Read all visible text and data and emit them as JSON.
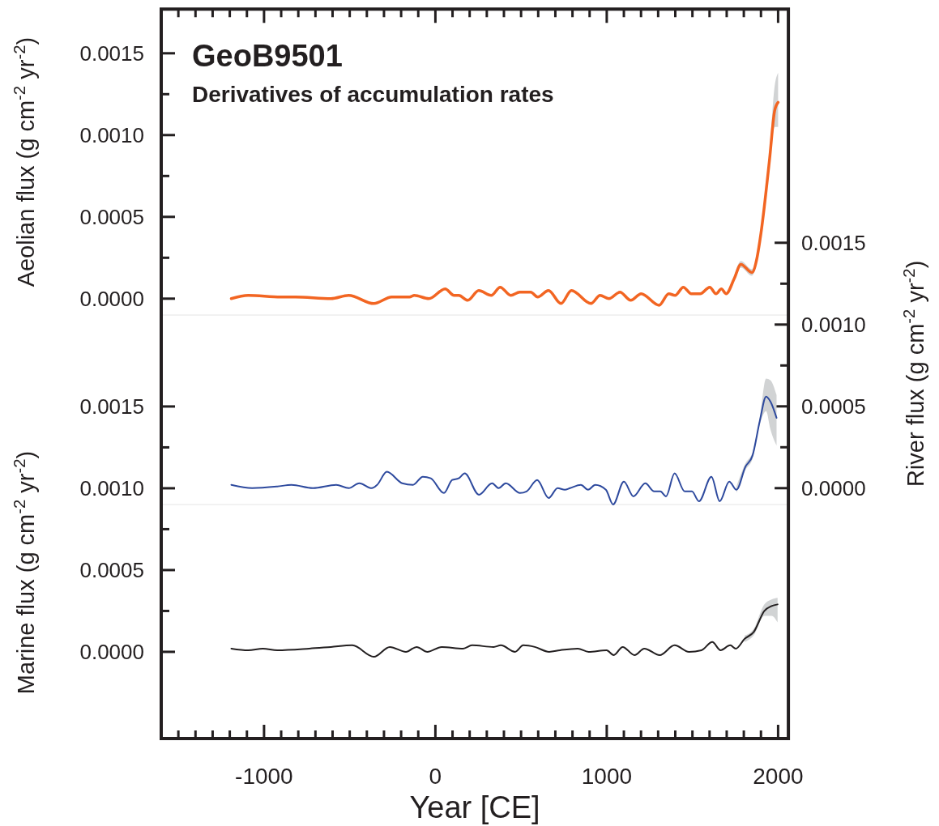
{
  "chart_data": [
    {
      "type": "line",
      "title": "GeoB9501",
      "subtitle": "Derivatives of accumulation rates",
      "ylabel": "Aeolian flux (g cm$^{-2}$ yr$^{-2}$)",
      "xlim": [
        -1600,
        2060
      ],
      "ylim": [
        -0.0001,
        0.00177
      ],
      "yticks": [
        {
          "value": 0,
          "label": "0.0000"
        },
        {
          "value": 0.00025,
          "label": null
        },
        {
          "value": 0.0005,
          "label": "0.0005"
        },
        {
          "value": 0.00075,
          "label": null
        },
        {
          "value": 0.001,
          "label": "0.0010"
        },
        {
          "value": 0.00125,
          "label": null
        },
        {
          "value": 0.0015,
          "label": "0.0015"
        }
      ],
      "tick_labels": "y",
      "series": [
        {
          "color": "#f26522",
          "x": [
            -1191,
            -1092,
            -903,
            -818,
            -610,
            -506,
            -359,
            -255,
            -151,
            -123,
            -38,
            57,
            109,
            137,
            189,
            253,
            326,
            378,
            440,
            492,
            556,
            597,
            660,
            733,
            794,
            908,
            961,
            1013,
            1077,
            1140,
            1201,
            1305,
            1362,
            1399,
            1447,
            1493,
            1545,
            1601,
            1638,
            1669,
            1697,
            1743,
            1783,
            1847,
            1877,
            1900,
            1950,
            1980,
            2000
          ],
          "values": [
            0.0,
            2e-05,
            1e-05,
            1e-05,
            0.0,
            2e-05,
            -3e-05,
            1e-05,
            1e-05,
            2e-05,
            0.0,
            6e-05,
            2e-05,
            2e-05,
            -1e-05,
            5e-05,
            2e-05,
            7e-05,
            2e-05,
            4e-05,
            4e-05,
            1e-05,
            5e-05,
            -3e-05,
            5e-05,
            -3e-05,
            2e-05,
            0.0,
            4e-05,
            -1e-05,
            3e-05,
            -4e-05,
            3e-05,
            2e-05,
            7e-05,
            3e-05,
            3e-05,
            7e-05,
            3e-05,
            6e-05,
            3e-05,
            0.00012,
            0.00021,
            0.00016,
            0.00025,
            0.0004,
            0.00085,
            0.00115,
            0.0012
          ],
          "lower": [
            null,
            null,
            null,
            null,
            null,
            null,
            null,
            null,
            null,
            null,
            null,
            null,
            null,
            null,
            null,
            null,
            null,
            null,
            null,
            null,
            null,
            null,
            null,
            null,
            null,
            null,
            null,
            null,
            null,
            null,
            null,
            null,
            null,
            null,
            null,
            null,
            null,
            null,
            null,
            null,
            null,
            0.00011,
            0.00019,
            0.00014,
            0.00023,
            0.00037,
            0.0008,
            0.00105,
            0.00105
          ],
          "upper": [
            null,
            null,
            null,
            null,
            null,
            null,
            null,
            null,
            null,
            null,
            null,
            null,
            null,
            null,
            null,
            null,
            null,
            null,
            null,
            null,
            null,
            null,
            null,
            null,
            null,
            null,
            null,
            null,
            null,
            null,
            null,
            null,
            null,
            null,
            null,
            null,
            null,
            null,
            null,
            null,
            null,
            0.00013,
            0.00023,
            0.00018,
            0.00027,
            0.00043,
            0.0009,
            0.0013,
            0.00138
          ]
        }
      ]
    },
    {
      "type": "line",
      "y2label": "River flux (g cm$^{-2}$ yr$^{-2}$)",
      "xlim": [
        -1600,
        2060
      ],
      "y2lim": [
        -0.0001,
        0.0015
      ],
      "y2ticks": [
        {
          "value": 0,
          "label": "0.0000"
        },
        {
          "value": 0.00025,
          "label": null
        },
        {
          "value": 0.0005,
          "label": "0.0005"
        },
        {
          "value": 0.00075,
          "label": null
        },
        {
          "value": 0.001,
          "label": "0.0010"
        },
        {
          "value": 0.00125,
          "label": null
        },
        {
          "value": 0.0015,
          "label": "0.0015"
        }
      ],
      "tick_labels": "y",
      "series": [
        {
          "color": "#2e4a9e",
          "axis": "y2",
          "x": [
            -1191,
            -1069,
            -923,
            -840,
            -715,
            -579,
            -506,
            -444,
            -371,
            -340,
            -283,
            -194,
            -131,
            -73,
            -27,
            50,
            98,
            136,
            171,
            254,
            331,
            369,
            411,
            494,
            532,
            594,
            661,
            713,
            755,
            786,
            849,
            891,
            933,
            995,
            1037,
            1100,
            1156,
            1225,
            1277,
            1313,
            1346,
            1396,
            1455,
            1497,
            1538,
            1611,
            1659,
            1715,
            1757,
            1809,
            1851,
            1893,
            1930,
            1955,
            1991
          ],
          "values": [
            2e-05,
            0.0,
            1e-05,
            2e-05,
            0.0,
            2e-05,
            0.0,
            3e-05,
            0.0,
            2e-05,
            0.0001,
            3e-05,
            2e-05,
            7e-05,
            6e-05,
            -3e-05,
            5e-05,
            6e-05,
            9e-05,
            -4e-05,
            3e-05,
            0.0,
            3e-05,
            -3e-05,
            -2e-05,
            5e-05,
            -6e-05,
            0.0,
            -1e-05,
            0.0,
            2e-05,
            -1e-05,
            2e-05,
            -1e-05,
            -0.0001,
            4e-05,
            -5e-05,
            3e-05,
            -2e-05,
            -2e-05,
            -5e-05,
            9e-05,
            -2e-05,
            -2e-05,
            -8e-05,
            7e-05,
            -8e-05,
            4e-05,
            -1e-05,
            0.00013,
            0.0002,
            0.00041,
            0.00056,
            0.00053,
            0.00043
          ],
          "lower": [
            null,
            null,
            null,
            null,
            null,
            null,
            null,
            null,
            null,
            null,
            null,
            null,
            null,
            null,
            null,
            null,
            null,
            null,
            null,
            null,
            null,
            null,
            null,
            null,
            null,
            null,
            null,
            null,
            null,
            null,
            null,
            null,
            null,
            null,
            null,
            null,
            null,
            null,
            null,
            null,
            null,
            null,
            null,
            null,
            null,
            null,
            null,
            null,
            -3e-05,
            0.00011,
            0.00018,
            0.00039,
            0.00047,
            0.00036,
            0.00026
          ],
          "upper": [
            null,
            null,
            null,
            null,
            null,
            null,
            null,
            null,
            null,
            null,
            null,
            null,
            null,
            null,
            null,
            null,
            null,
            null,
            null,
            null,
            null,
            null,
            null,
            null,
            null,
            null,
            null,
            null,
            null,
            null,
            null,
            null,
            null,
            null,
            null,
            null,
            null,
            null,
            null,
            null,
            null,
            null,
            null,
            null,
            null,
            null,
            null,
            null,
            1e-05,
            0.00015,
            0.00022,
            0.00043,
            0.00067,
            0.00066,
            0.00057
          ]
        }
      ]
    },
    {
      "type": "line",
      "xlabel": "Year [CE]",
      "ylabel": "Marine flux (g cm$^{-2}$ yr$^{-2}$)",
      "xlim": [
        -1600,
        2060
      ],
      "ylim": [
        -0.00053,
        0.0015
      ],
      "xticks": [
        {
          "value": -1500,
          "label": null
        },
        {
          "value": -1400,
          "label": null
        },
        {
          "value": -1300,
          "label": null
        },
        {
          "value": -1200,
          "label": null
        },
        {
          "value": -1100,
          "label": null
        },
        -1000,
        {
          "value": -900,
          "label": null
        },
        {
          "value": -800,
          "label": null
        },
        {
          "value": -700,
          "label": null
        },
        {
          "value": -600,
          "label": null
        },
        {
          "value": -500,
          "label": null
        },
        {
          "value": -400,
          "label": null
        },
        {
          "value": -300,
          "label": null
        },
        {
          "value": -200,
          "label": null
        },
        {
          "value": -100,
          "label": null
        },
        0,
        {
          "value": 100,
          "label": null
        },
        {
          "value": 200,
          "label": null
        },
        {
          "value": 300,
          "label": null
        },
        {
          "value": 400,
          "label": null
        },
        {
          "value": 500,
          "label": null
        },
        {
          "value": 600,
          "label": null
        },
        {
          "value": 700,
          "label": null
        },
        {
          "value": 800,
          "label": null
        },
        {
          "value": 900,
          "label": null
        },
        1000,
        {
          "value": 1100,
          "label": null
        },
        {
          "value": 1200,
          "label": null
        },
        {
          "value": 1300,
          "label": null
        },
        {
          "value": 1400,
          "label": null
        },
        {
          "value": 1500,
          "label": null
        },
        {
          "value": 1600,
          "label": null
        },
        {
          "value": 1700,
          "label": null
        },
        {
          "value": 1800,
          "label": null
        },
        {
          "value": 1900,
          "label": null
        },
        2000
      ],
      "yticks": [
        {
          "value": 0,
          "label": "0.0000"
        },
        {
          "value": 0.00025,
          "label": null
        },
        {
          "value": 0.0005,
          "label": "0.0005"
        },
        {
          "value": 0.00075,
          "label": null
        },
        {
          "value": 0.001,
          "label": "0.0010"
        },
        {
          "value": 0.00125,
          "label": null
        },
        {
          "value": 0.0015,
          "label": "0.0015"
        }
      ],
      "series": [
        {
          "color": "#231f20",
          "x": [
            -1191,
            -1092,
            -1007,
            -923,
            -736,
            -610,
            -485,
            -359,
            -266,
            -172,
            -110,
            -47,
            37,
            162,
            214,
            340,
            382,
            465,
            513,
            580,
            664,
            727,
            831,
            894,
            999,
            1041,
            1093,
            1162,
            1219,
            1309,
            1396,
            1480,
            1553,
            1616,
            1664,
            1721,
            1753,
            1805,
            1857,
            1920,
            1962,
            1997
          ],
          "values": [
            2e-05,
            1e-05,
            2e-05,
            1e-05,
            2e-05,
            3e-05,
            4e-05,
            -3e-05,
            3e-05,
            0.0,
            3e-05,
            0.0,
            3e-05,
            2e-05,
            4e-05,
            3e-05,
            4e-05,
            0.0,
            4e-05,
            3e-05,
            0.0,
            1e-05,
            2e-05,
            0.0,
            1e-05,
            -2e-05,
            3e-05,
            -2e-05,
            2e-05,
            -2e-05,
            4e-05,
            0.0,
            1e-05,
            6e-05,
            1e-05,
            4e-05,
            2e-05,
            8e-05,
            0.00012,
            0.00025,
            0.00028,
            0.00029
          ],
          "lower": [
            null,
            null,
            null,
            null,
            null,
            null,
            null,
            null,
            null,
            null,
            null,
            null,
            null,
            null,
            null,
            null,
            null,
            null,
            null,
            null,
            null,
            null,
            null,
            null,
            null,
            null,
            null,
            null,
            null,
            null,
            null,
            null,
            null,
            null,
            null,
            null,
            null,
            6e-05,
            0.0001,
            0.00022,
            0.00022,
            0.00018
          ],
          "upper": [
            null,
            null,
            null,
            null,
            null,
            null,
            null,
            null,
            null,
            null,
            null,
            null,
            null,
            null,
            null,
            null,
            null,
            null,
            null,
            null,
            null,
            null,
            null,
            null,
            null,
            null,
            null,
            null,
            null,
            null,
            null,
            null,
            null,
            null,
            null,
            null,
            null,
            0.0001,
            0.00014,
            0.00029,
            0.00032,
            0.00033
          ]
        }
      ]
    }
  ]
}
